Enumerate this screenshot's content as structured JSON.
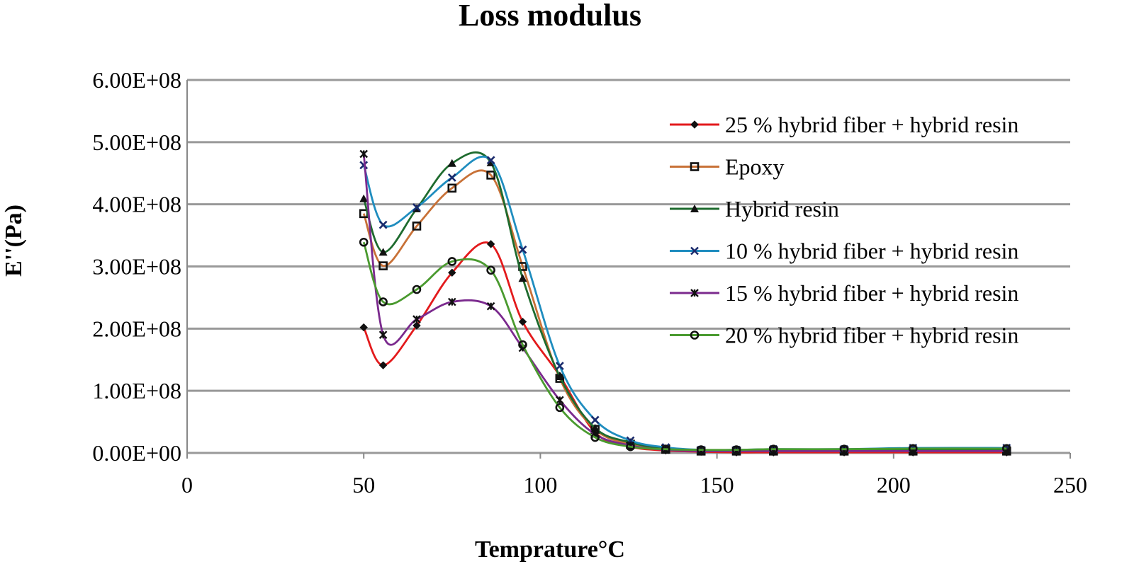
{
  "chart_data": {
    "type": "line",
    "title": "Loss modulus",
    "xlabel": "Temprature°C",
    "ylabel": "E''(Pa)",
    "xlim": [
      0,
      250
    ],
    "ylim": [
      0,
      600000000
    ],
    "x_ticks": [
      "0",
      "50",
      "100",
      "150",
      "200",
      "250"
    ],
    "y_ticks": [
      "0.00E+00",
      "1.00E+08",
      "2.00E+08",
      "3.00E+08",
      "4.00E+08",
      "5.00E+08",
      "6.00E+08"
    ],
    "grid": "horizontal",
    "legend_position": "right",
    "x": [
      50,
      55.5,
      65,
      75,
      86,
      95,
      105.5,
      115.5,
      125.5,
      135.5,
      145.5,
      155.5,
      166,
      186,
      205.5,
      232
    ],
    "series": [
      {
        "name": "25 % hybrid fiber + hybrid resin",
        "color": "#e31a1c",
        "marker": "diamond",
        "values": [
          202000000,
          141000000,
          205000000,
          290000000,
          336000000,
          211000000,
          124000000,
          33000000,
          10000000,
          4000000,
          2000000,
          1000000,
          1000000,
          1000000,
          1000000,
          1000000
        ]
      },
      {
        "name": "Epoxy",
        "color": "#c87137",
        "marker": "square",
        "values": [
          385000000,
          301000000,
          365000000,
          426000000,
          447000000,
          300000000,
          120000000,
          38000000,
          14000000,
          6000000,
          3000000,
          3000000,
          3000000,
          3000000,
          3000000,
          3000000
        ]
      },
      {
        "name": "Hybrid resin",
        "color": "#1e6b2e",
        "marker": "triangle",
        "values": [
          409000000,
          323000000,
          393000000,
          466000000,
          467000000,
          281000000,
          123000000,
          40000000,
          17000000,
          7000000,
          4000000,
          4000000,
          4000000,
          5000000,
          6000000,
          6000000
        ]
      },
      {
        "name": "10 % hybrid fiber + hybrid resin",
        "color": "#1f8dbf",
        "marker": "x",
        "values": [
          463000000,
          367000000,
          395000000,
          443000000,
          471000000,
          327000000,
          140000000,
          53000000,
          20000000,
          9000000,
          5000000,
          5000000,
          6000000,
          6000000,
          8000000,
          8000000
        ]
      },
      {
        "name": "15 % hybrid fiber + hybrid resin",
        "color": "#7b2a8e",
        "marker": "star",
        "values": [
          481000000,
          190000000,
          215000000,
          243000000,
          236000000,
          169000000,
          85000000,
          30000000,
          12000000,
          5000000,
          3000000,
          3000000,
          3000000,
          3000000,
          3000000,
          3000000
        ]
      },
      {
        "name": "20 % hybrid fiber + hybrid resin",
        "color": "#4a9a2f",
        "marker": "circle",
        "values": [
          339000000,
          243000000,
          263000000,
          308000000,
          294000000,
          174000000,
          73000000,
          25000000,
          10000000,
          6000000,
          5000000,
          5000000,
          6000000,
          6000000,
          7000000,
          7000000
        ]
      }
    ]
  }
}
